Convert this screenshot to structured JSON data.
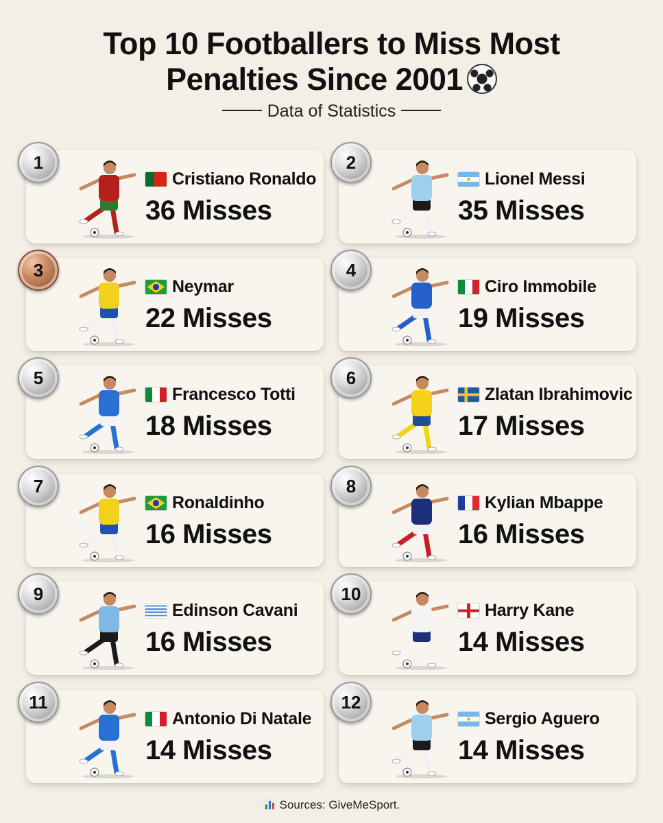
{
  "title_line1": "Top 10 Footballers to Miss Most",
  "title_line2": "Penalties Since 2001",
  "title_icon": "soccer-ball-icon",
  "subtitle": "Data of Statistics",
  "footer": "Sources: GiveMeSport.",
  "players": [
    {
      "rank": "1",
      "name": "Cristiano Ronaldo",
      "misses": "36 Misses",
      "flag": "portugal",
      "shirt": "#b5201d",
      "shorts": "#2e7a2e",
      "socks": "#b5201d"
    },
    {
      "rank": "2",
      "name": "Lionel Messi",
      "misses": "35 Misses",
      "flag": "argentina",
      "shirt": "#9ed0ee",
      "shorts": "#1b1b1b",
      "socks": "#f2f2f2"
    },
    {
      "rank": "3",
      "name": "Neymar",
      "misses": "22 Misses",
      "flag": "brazil",
      "shirt": "#f2d21c",
      "shorts": "#1f4fb8",
      "socks": "#f2f2f2"
    },
    {
      "rank": "4",
      "name": "Ciro Immobile",
      "misses": "19 Misses",
      "flag": "italy",
      "shirt": "#2460c8",
      "shorts": "#f2f2f2",
      "socks": "#2460c8"
    },
    {
      "rank": "5",
      "name": "Francesco Totti",
      "misses": "18 Misses",
      "flag": "italy",
      "shirt": "#2a6fd6",
      "shorts": "#f2f2f2",
      "socks": "#2a6fd6"
    },
    {
      "rank": "6",
      "name": "Zlatan Ibrahimovic",
      "misses": "17 Misses",
      "flag": "sweden",
      "shirt": "#f4d21a",
      "shorts": "#1e4c9a",
      "socks": "#f4d21a"
    },
    {
      "rank": "7",
      "name": "Ronaldinho",
      "misses": "16 Misses",
      "flag": "brazil",
      "shirt": "#f4d21a",
      "shorts": "#1f4fb8",
      "socks": "#f2f2f2"
    },
    {
      "rank": "8",
      "name": "Kylian Mbappe",
      "misses": "16 Misses",
      "flag": "france",
      "shirt": "#1c2f78",
      "shorts": "#f2f2f2",
      "socks": "#c81e2a"
    },
    {
      "rank": "9",
      "name": "Edinson Cavani",
      "misses": "16 Misses",
      "flag": "uruguay",
      "shirt": "#7fb9e6",
      "shorts": "#1b1b1b",
      "socks": "#1b1b1b"
    },
    {
      "rank": "10",
      "name": "Harry Kane",
      "misses": "14 Misses",
      "flag": "england",
      "shirt": "#f5f5f5",
      "shorts": "#1c2f78",
      "socks": "#f5f5f5"
    },
    {
      "rank": "11",
      "name": "Antonio Di Natale",
      "misses": "14 Misses",
      "flag": "italy",
      "shirt": "#2a6fd6",
      "shorts": "#f2f2f2",
      "socks": "#2a6fd6"
    },
    {
      "rank": "12",
      "name": "Sergio Aguero",
      "misses": "14 Misses",
      "flag": "argentina",
      "shirt": "#9ed0ee",
      "shorts": "#1b1b1b",
      "socks": "#f2f2f2"
    }
  ],
  "colors": {
    "background": "#f3efe6",
    "card": "#f8f5ef",
    "silver": "#c9c9c9",
    "bronze": "#b06c45"
  }
}
